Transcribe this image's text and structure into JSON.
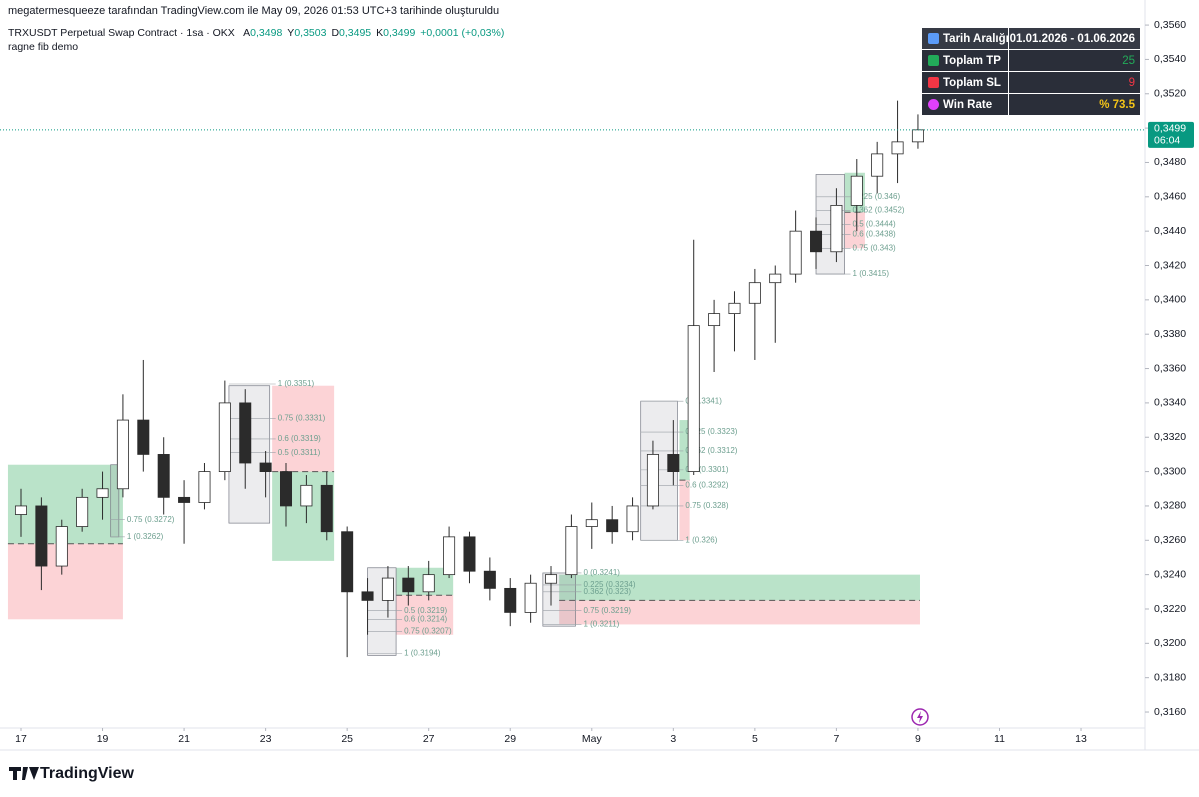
{
  "chart_data": {
    "type": "candlestick",
    "caption": "megatermesqueeze tarafından TradingView.com ile May 09, 2026 01:53 UTC+3 tarihinde oluşturuldu",
    "symbol": "TRXUSDT Perpetual Swap Contract · 1sa · OKX",
    "ohlc_header": [
      {
        "key": "A",
        "value": "0,3498"
      },
      {
        "key": "Y",
        "value": "0,3503"
      },
      {
        "key": "D",
        "value": "0,3495"
      },
      {
        "key": "K",
        "value": "0,3499"
      }
    ],
    "change": "+0,0001 (+0,03%)",
    "indicator": "ragne fib demo",
    "brand": "TradingView",
    "up_color": "#ffffff",
    "down_color": "#2b2b2b",
    "wick_color": "#2b2b2b",
    "grid": false,
    "x": [
      17,
      17.5,
      18,
      18.5,
      19,
      19.5,
      20,
      20.5,
      21,
      21.5,
      22,
      22.5,
      23,
      23.5,
      24,
      24.5,
      25,
      25.5,
      26,
      26.5,
      27,
      27.5,
      28,
      28.5,
      29,
      29.5,
      30,
      30.5,
      31,
      31.5,
      32,
      32.5,
      33,
      33.5,
      34,
      34.5,
      35,
      35.5,
      36,
      36.5,
      37,
      37.5,
      38,
      38.5,
      39
    ],
    "open": [
      0.3275,
      0.328,
      0.3245,
      0.3268,
      0.3285,
      0.329,
      0.333,
      0.331,
      0.3285,
      0.3282,
      0.33,
      0.334,
      0.3305,
      0.33,
      0.328,
      0.3292,
      0.3265,
      0.323,
      0.3225,
      0.3238,
      0.323,
      0.324,
      0.3262,
      0.3242,
      0.3232,
      0.3218,
      0.3235,
      0.324,
      0.3268,
      0.3272,
      0.3265,
      0.328,
      0.331,
      0.33,
      0.3385,
      0.3392,
      0.3398,
      0.341,
      0.3415,
      0.344,
      0.3428,
      0.3455,
      0.3472,
      0.3485,
      0.3492
    ],
    "high": [
      0.329,
      0.3285,
      0.3272,
      0.329,
      0.33,
      0.3345,
      0.3365,
      0.332,
      0.3295,
      0.3305,
      0.3353,
      0.3348,
      0.3312,
      0.3305,
      0.3298,
      0.33,
      0.3268,
      0.3238,
      0.3245,
      0.3245,
      0.3248,
      0.3268,
      0.3265,
      0.325,
      0.3238,
      0.324,
      0.3245,
      0.3275,
      0.3282,
      0.328,
      0.3285,
      0.3318,
      0.333,
      0.3435,
      0.34,
      0.3405,
      0.3418,
      0.342,
      0.3452,
      0.3448,
      0.3465,
      0.3482,
      0.3492,
      0.3516,
      0.3508
    ],
    "low": [
      0.3262,
      0.3231,
      0.324,
      0.3265,
      0.3272,
      0.3285,
      0.33,
      0.3275,
      0.3258,
      0.3278,
      0.3295,
      0.329,
      0.3285,
      0.3268,
      0.327,
      0.326,
      0.3192,
      0.3205,
      0.3215,
      0.3222,
      0.3225,
      0.3238,
      0.3235,
      0.3225,
      0.321,
      0.3212,
      0.3222,
      0.3238,
      0.3255,
      0.3258,
      0.326,
      0.3278,
      0.3292,
      0.3298,
      0.3358,
      0.337,
      0.3365,
      0.3375,
      0.341,
      0.3418,
      0.3422,
      0.344,
      0.3462,
      0.3468,
      0.3488
    ],
    "close": [
      0.328,
      0.3245,
      0.3268,
      0.3285,
      0.329,
      0.333,
      0.331,
      0.3285,
      0.3282,
      0.33,
      0.334,
      0.3305,
      0.33,
      0.328,
      0.3292,
      0.3265,
      0.323,
      0.3225,
      0.3238,
      0.323,
      0.324,
      0.3262,
      0.3242,
      0.3232,
      0.3218,
      0.3235,
      0.324,
      0.3268,
      0.3272,
      0.3265,
      0.328,
      0.331,
      0.33,
      0.3385,
      0.3392,
      0.3398,
      0.341,
      0.3415,
      0.344,
      0.3428,
      0.3455,
      0.3472,
      0.3485,
      0.3492,
      0.3499
    ],
    "xlim": [
      16.485,
      44.569
    ],
    "xticks": [
      17,
      19,
      21,
      23,
      25,
      27,
      29,
      {
        "value": 31,
        "label": "May"
      },
      {
        "value": 33,
        "label": "3"
      },
      {
        "value": 35,
        "label": "5"
      },
      {
        "value": 37,
        "label": "7"
      },
      {
        "value": 39,
        "label": "9"
      },
      {
        "value": 41,
        "label": "11"
      },
      {
        "value": 43,
        "label": "13"
      }
    ],
    "ylim": [
      0.31507,
      0.35746
    ],
    "yticks": [
      {
        "value": 0.316,
        "label": "0,3160"
      },
      {
        "value": 0.318,
        "label": "0,3180"
      },
      {
        "value": 0.32,
        "label": "0,3200"
      },
      {
        "value": 0.322,
        "label": "0,3220"
      },
      {
        "value": 0.324,
        "label": "0,3240"
      },
      {
        "value": 0.326,
        "label": "0,3260"
      },
      {
        "value": 0.328,
        "label": "0,3280"
      },
      {
        "value": 0.33,
        "label": "0,3300"
      },
      {
        "value": 0.332,
        "label": "0,3320"
      },
      {
        "value": 0.334,
        "label": "0,3340"
      },
      {
        "value": 0.336,
        "label": "0,3360"
      },
      {
        "value": 0.338,
        "label": "0,3380"
      },
      {
        "value": 0.34,
        "label": "0,3400"
      },
      {
        "value": 0.342,
        "label": "0,3420"
      },
      {
        "value": 0.344,
        "label": "0,3440"
      },
      {
        "value": 0.346,
        "label": "0,3460"
      },
      {
        "value": 0.348,
        "label": "0,3480"
      },
      {
        "value": 0.35,
        "label": "0,3500"
      },
      {
        "value": 0.352,
        "label": "0,3520"
      },
      {
        "value": 0.354,
        "label": "0,3540"
      },
      {
        "value": 0.356,
        "label": "0,3560"
      }
    ],
    "last_price": {
      "value": 0.3499,
      "label": "0,3499"
    },
    "countdown": "06:04",
    "positions": [
      {
        "x0": 16.68,
        "x1": 19.5,
        "tp": 0.3304,
        "entry": 0.3258,
        "sl": 0.3214
      },
      {
        "x0": 23.16,
        "x1": 24.68,
        "tp": 0.3248,
        "entry": 0.33,
        "sl": 0.335
      },
      {
        "x0": 26.2,
        "x1": 27.6,
        "tp": 0.3244,
        "entry": 0.3228,
        "sl": 0.3205
      },
      {
        "x0": 30.2,
        "x1": 39.05,
        "tp": 0.324,
        "entry": 0.3225,
        "sl": 0.3211
      },
      {
        "x0": 33.15,
        "x1": 33.4,
        "tp": 0.333,
        "entry": 0.3295,
        "sl": 0.326
      },
      {
        "x0": 37.2,
        "x1": 37.7,
        "tp": 0.3474,
        "entry": 0.3451,
        "sl": 0.343
      }
    ],
    "fibs": [
      {
        "x0": 19.2,
        "x1": 19.4,
        "top": 0.3304,
        "bottom": 0.3262,
        "levels": [
          {
            "label": "0.75 (0.3272)",
            "price": 0.3272
          },
          {
            "label": "1 (0.3262)",
            "price": 0.3262
          }
        ]
      },
      {
        "x0": 22.1,
        "x1": 23.1,
        "top": 0.335,
        "bottom": 0.327,
        "levels": [
          {
            "label": "1 (0.3351)",
            "price": 0.3351
          },
          {
            "label": "0.75 (0.3331)",
            "price": 0.3331
          },
          {
            "label": "0.6 (0.3319)",
            "price": 0.3319
          },
          {
            "label": "0.5 (0.3311)",
            "price": 0.3311
          }
        ]
      },
      {
        "x0": 25.5,
        "x1": 26.2,
        "top": 0.3244,
        "bottom": 0.3193,
        "levels": [
          {
            "label": "0.5 (0.3219)",
            "price": 0.3219
          },
          {
            "label": "0.6 (0.3214)",
            "price": 0.3214
          },
          {
            "label": "0.75 (0.3207)",
            "price": 0.3207
          },
          {
            "label": "1 (0.3194)",
            "price": 0.3194
          }
        ]
      },
      {
        "x0": 29.8,
        "x1": 30.6,
        "top": 0.3241,
        "bottom": 0.321,
        "levels": [
          {
            "label": "0 (0.3241)",
            "price": 0.3241
          },
          {
            "label": "0.225 (0.3234)",
            "price": 0.3234
          },
          {
            "label": "0.362 (0.323)",
            "price": 0.323
          },
          {
            "label": "0.75 (0.3219)",
            "price": 0.3219
          },
          {
            "label": "1 (0.3211)",
            "price": 0.3211
          }
        ]
      },
      {
        "x0": 32.2,
        "x1": 33.1,
        "top": 0.3341,
        "bottom": 0.326,
        "levels": [
          {
            "label": "0 (0.3341)",
            "price": 0.3341
          },
          {
            "label": "0.225 (0.3323)",
            "price": 0.3323
          },
          {
            "label": "0.362 (0.3312)",
            "price": 0.3312
          },
          {
            "label": "0.5 (0.3301)",
            "price": 0.3301
          },
          {
            "label": "0.6 (0.3292)",
            "price": 0.3292
          },
          {
            "label": "0.75 (0.328)",
            "price": 0.328
          },
          {
            "label": "1 (0.326)",
            "price": 0.326
          }
        ]
      },
      {
        "x0": 36.5,
        "x1": 37.2,
        "top": 0.3473,
        "bottom": 0.3415,
        "levels": [
          {
            "label": "0.225 (0.346)",
            "price": 0.346
          },
          {
            "label": "0.362 (0.3452)",
            "price": 0.3452
          },
          {
            "label": "0.5 (0.3444)",
            "price": 0.3444
          },
          {
            "label": "0.6 (0.3438)",
            "price": 0.3438
          },
          {
            "label": "0.75 (0.343)",
            "price": 0.343
          },
          {
            "label": "1 (0.3415)",
            "price": 0.3415
          }
        ]
      }
    ],
    "stats_table": [
      {
        "label": "Tarih Aralığı",
        "value": "01.01.2026 - 01.06.2026"
      },
      {
        "label": "Toplam TP",
        "value": "25"
      },
      {
        "label": "Toplam SL",
        "value": "9"
      },
      {
        "label": "Win Rate",
        "value": "% 73.5"
      }
    ]
  }
}
